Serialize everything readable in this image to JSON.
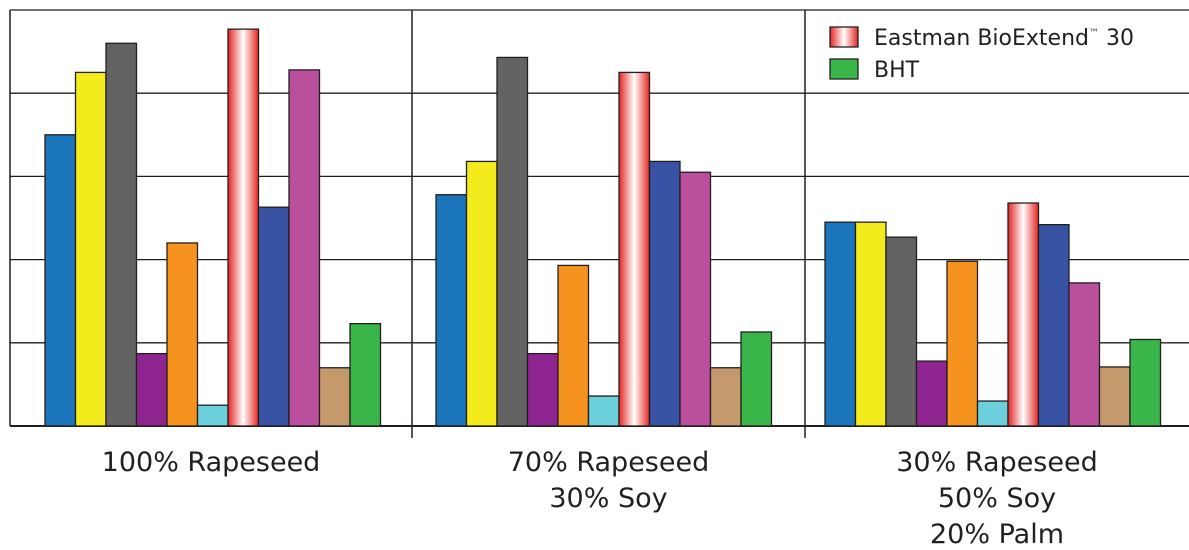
{
  "chart_data": {
    "type": "bar",
    "title": "",
    "xlabel": "",
    "ylabel": "",
    "ylim": [
      0,
      5
    ],
    "grid": true,
    "legend_placement": "top-right",
    "groups": [
      {
        "label_lines": [
          "100% Rapeseed"
        ],
        "values": [
          3.5,
          4.25,
          4.6,
          0.87,
          2.2,
          0.25,
          4.77,
          2.63,
          4.28,
          0.7,
          1.23
        ]
      },
      {
        "label_lines": [
          "70% Rapeseed",
          "30% Soy"
        ],
        "values": [
          2.78,
          3.18,
          4.43,
          0.87,
          1.93,
          0.36,
          4.25,
          3.18,
          3.05,
          0.7,
          1.13
        ]
      },
      {
        "label_lines": [
          "30% Rapeseed",
          "50% Soy",
          "20% Palm"
        ],
        "values": [
          2.45,
          2.45,
          2.27,
          0.78,
          1.98,
          0.3,
          2.68,
          2.42,
          1.72,
          0.71,
          1.04
        ]
      }
    ],
    "bar_colors": [
      "#1b75bb",
      "#f4eb1c",
      "#636363",
      "#8f2590",
      "#f6921e",
      "#6ccfdc",
      "gradient-red",
      "#3853a4",
      "#b94f9d",
      "#c49a6c",
      "#39b54a"
    ],
    "legend": [
      {
        "label": "Eastman BioExtend",
        "suffix_tm": "™",
        "suffix": " 30",
        "color": "gradient-red"
      },
      {
        "label": "BHT",
        "suffix_tm": "",
        "suffix": "",
        "color": "#39b54a"
      }
    ]
  }
}
